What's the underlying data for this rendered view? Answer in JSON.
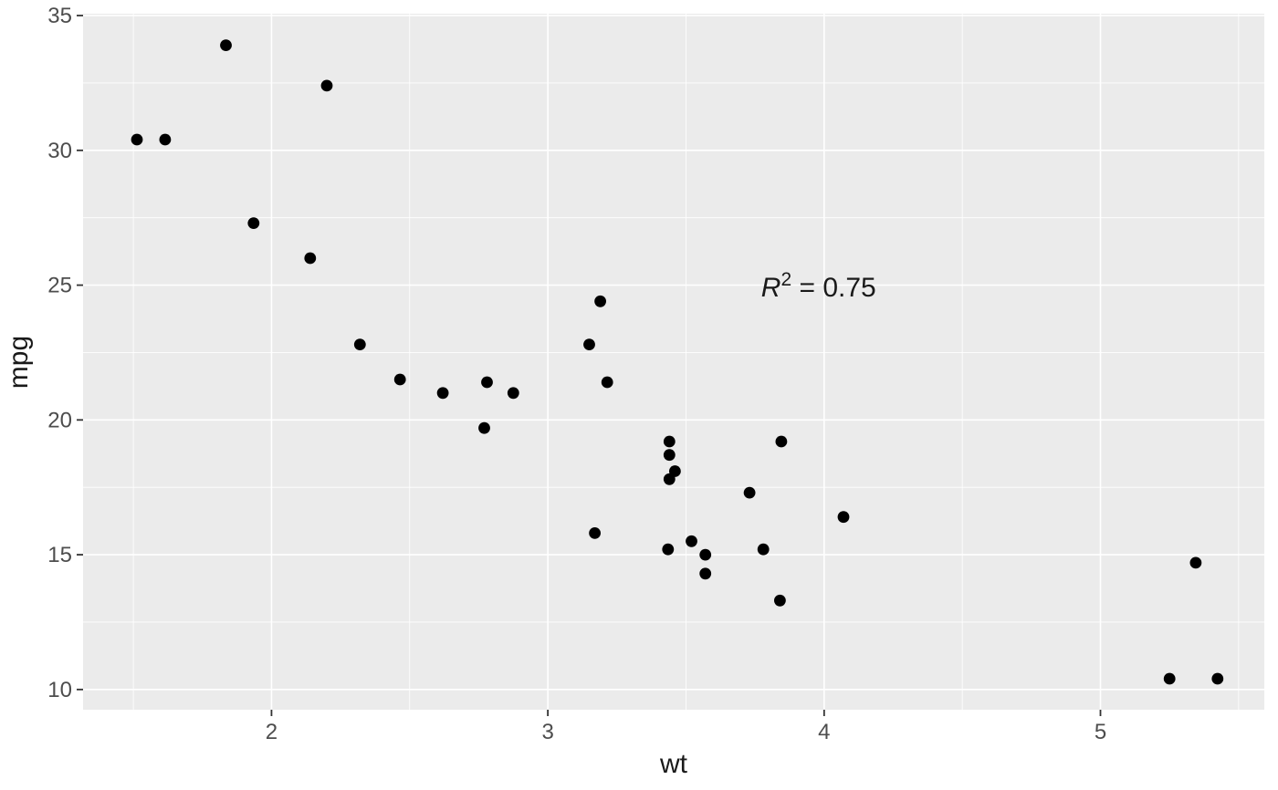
{
  "chart_data": {
    "type": "scatter",
    "title": "",
    "xlabel": "wt",
    "ylabel": "mpg",
    "x_ticks": [
      2,
      3,
      4,
      5
    ],
    "x_tick_labels": [
      "2",
      "3",
      "4",
      "5"
    ],
    "x_minor_ticks": [
      1.5,
      2.5,
      3.5,
      4.5,
      5.5
    ],
    "y_ticks": [
      10,
      15,
      20,
      25,
      30,
      35
    ],
    "y_tick_labels": [
      "10",
      "15",
      "20",
      "25",
      "30",
      "35"
    ],
    "y_minor_ticks": [
      12.5,
      17.5,
      22.5,
      27.5,
      32.5
    ],
    "xlim": [
      1.318,
      5.593
    ],
    "ylim": [
      9.25,
      35.07
    ],
    "grid": true,
    "legend": "none",
    "annotation": {
      "label": "R² = 0.75",
      "variable": "R",
      "exponent": "2",
      "equals_value": " = 0.75",
      "x": 3.98,
      "y": 24.88
    },
    "points": [
      [
        2.62,
        21.0
      ],
      [
        2.875,
        21.0
      ],
      [
        2.32,
        22.8
      ],
      [
        3.215,
        21.4
      ],
      [
        3.44,
        18.7
      ],
      [
        3.46,
        18.1
      ],
      [
        3.57,
        14.3
      ],
      [
        3.19,
        24.4
      ],
      [
        3.15,
        22.8
      ],
      [
        3.44,
        19.2
      ],
      [
        3.44,
        17.8
      ],
      [
        4.07,
        16.4
      ],
      [
        3.73,
        17.3
      ],
      [
        3.78,
        15.2
      ],
      [
        5.25,
        10.4
      ],
      [
        5.424,
        10.4
      ],
      [
        5.345,
        14.7
      ],
      [
        2.2,
        32.4
      ],
      [
        1.615,
        30.4
      ],
      [
        1.835,
        33.9
      ],
      [
        2.465,
        21.5
      ],
      [
        3.52,
        15.5
      ],
      [
        3.435,
        15.2
      ],
      [
        3.84,
        13.3
      ],
      [
        3.845,
        19.2
      ],
      [
        1.935,
        27.3
      ],
      [
        2.14,
        26.0
      ],
      [
        1.513,
        30.4
      ],
      [
        3.17,
        15.8
      ],
      [
        2.77,
        19.7
      ],
      [
        3.57,
        15.0
      ],
      [
        2.78,
        21.4
      ]
    ]
  },
  "style": {
    "page_background": "#FFFFFF",
    "panel_background": "#EBEBEB",
    "grid_color": "#FFFFFF",
    "point_color": "#000000",
    "tick_label_color": "#4D4D4D",
    "axis_title_color": "#1A1A1A",
    "tick_mark_color": "#333333",
    "annotation_color": "#1A1A1A"
  }
}
